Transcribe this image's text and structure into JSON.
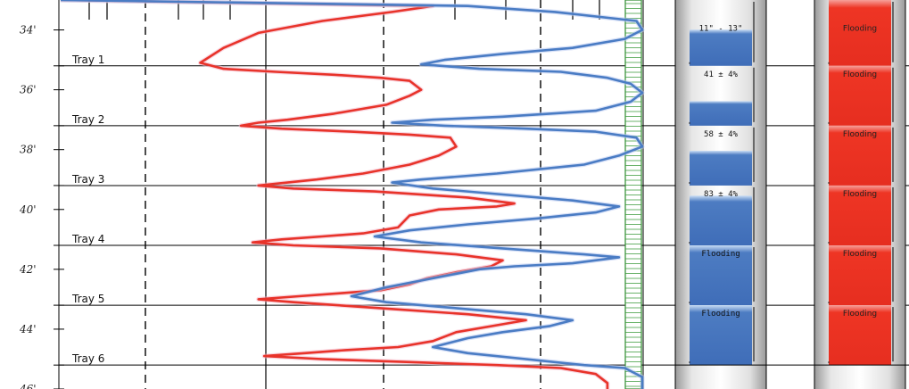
{
  "chart_data": {
    "type": "line",
    "depth_axis": {
      "labels": [
        "34'",
        "36'",
        "38'",
        "40'",
        "42'",
        "44'",
        "46'"
      ],
      "range": [
        33,
        46
      ],
      "label_depths": [
        34,
        36,
        38,
        40,
        42,
        44,
        46
      ]
    },
    "trays": [
      {
        "label": "Tray 1",
        "bottom_depth": 35.2
      },
      {
        "label": "Tray 2",
        "bottom_depth": 37.2
      },
      {
        "label": "Tray 3",
        "bottom_depth": 39.2
      },
      {
        "label": "Tray 4",
        "bottom_depth": 41.2
      },
      {
        "label": "Tray 5",
        "bottom_depth": 43.2
      },
      {
        "label": "Tray 6",
        "bottom_depth": 45.2
      }
    ],
    "x_range": [
      0,
      100
    ],
    "series": [
      {
        "color": "#e8332a",
        "points": [
          [
            0,
            33.0
          ],
          [
            64,
            33.2
          ],
          [
            57,
            33.4
          ],
          [
            45,
            33.7
          ],
          [
            34,
            34.1
          ],
          [
            28,
            34.6
          ],
          [
            24,
            35.1
          ],
          [
            28,
            35.3
          ],
          [
            37,
            35.4
          ],
          [
            47,
            35.5
          ],
          [
            55,
            35.6
          ],
          [
            60,
            35.7
          ],
          [
            62,
            36.0
          ],
          [
            60,
            36.2
          ],
          [
            56,
            36.5
          ],
          [
            47,
            36.8
          ],
          [
            39,
            37.0
          ],
          [
            34,
            37.1
          ],
          [
            31,
            37.2
          ],
          [
            38,
            37.3
          ],
          [
            50,
            37.4
          ],
          [
            60,
            37.5
          ],
          [
            67,
            37.6
          ],
          [
            68,
            37.9
          ],
          [
            65,
            38.2
          ],
          [
            60,
            38.5
          ],
          [
            52,
            38.8
          ],
          [
            44,
            39.0
          ],
          [
            39,
            39.1
          ],
          [
            34,
            39.2
          ],
          [
            40,
            39.3
          ],
          [
            54,
            39.4
          ],
          [
            70,
            39.6
          ],
          [
            78,
            39.8
          ],
          [
            75,
            39.9
          ],
          [
            65,
            40.0
          ],
          [
            60,
            40.2
          ],
          [
            58,
            40.6
          ],
          [
            52,
            40.8
          ],
          [
            45,
            40.9
          ],
          [
            38,
            41.0
          ],
          [
            33,
            41.1
          ],
          [
            40,
            41.2
          ],
          [
            55,
            41.3
          ],
          [
            68,
            41.5
          ],
          [
            76,
            41.7
          ],
          [
            74,
            41.9
          ],
          [
            68,
            42.1
          ],
          [
            63,
            42.3
          ],
          [
            60,
            42.5
          ],
          [
            55,
            42.7
          ],
          [
            48,
            42.8
          ],
          [
            41,
            42.9
          ],
          [
            34,
            43.0
          ],
          [
            40,
            43.1
          ],
          [
            55,
            43.3
          ],
          [
            70,
            43.5
          ],
          [
            80,
            43.7
          ],
          [
            74,
            43.9
          ],
          [
            68,
            44.1
          ],
          [
            64,
            44.4
          ],
          [
            58,
            44.6
          ],
          [
            49,
            44.7
          ],
          [
            42,
            44.8
          ],
          [
            35,
            44.9
          ],
          [
            45,
            45.0
          ],
          [
            60,
            45.1
          ],
          [
            75,
            45.2
          ],
          [
            86,
            45.3
          ],
          [
            92,
            45.5
          ],
          [
            94,
            45.8
          ],
          [
            94,
            46.0
          ]
        ]
      },
      {
        "color": "#4a7cc4",
        "points": [
          [
            0,
            33.0
          ],
          [
            70,
            33.2
          ],
          [
            85,
            33.4
          ],
          [
            99,
            33.7
          ],
          [
            100,
            34.0
          ],
          [
            97,
            34.3
          ],
          [
            88,
            34.6
          ],
          [
            76,
            34.8
          ],
          [
            66,
            35.0
          ],
          [
            62,
            35.15
          ],
          [
            72,
            35.3
          ],
          [
            86,
            35.4
          ],
          [
            94,
            35.6
          ],
          [
            98,
            35.8
          ],
          [
            100,
            36.1
          ],
          [
            98,
            36.4
          ],
          [
            92,
            36.7
          ],
          [
            76,
            36.9
          ],
          [
            64,
            37.0
          ],
          [
            57,
            37.1
          ],
          [
            66,
            37.2
          ],
          [
            80,
            37.3
          ],
          [
            92,
            37.4
          ],
          [
            99,
            37.6
          ],
          [
            100,
            37.9
          ],
          [
            96,
            38.2
          ],
          [
            90,
            38.5
          ],
          [
            75,
            38.8
          ],
          [
            62,
            39.0
          ],
          [
            57,
            39.1
          ],
          [
            64,
            39.3
          ],
          [
            76,
            39.5
          ],
          [
            88,
            39.7
          ],
          [
            96,
            39.9
          ],
          [
            92,
            40.1
          ],
          [
            82,
            40.3
          ],
          [
            70,
            40.5
          ],
          [
            60,
            40.7
          ],
          [
            54,
            40.9
          ],
          [
            62,
            41.1
          ],
          [
            76,
            41.3
          ],
          [
            90,
            41.5
          ],
          [
            96,
            41.6
          ],
          [
            88,
            41.8
          ],
          [
            78,
            41.9
          ],
          [
            72,
            42.0
          ],
          [
            64,
            42.3
          ],
          [
            56,
            42.6
          ],
          [
            50,
            42.9
          ],
          [
            56,
            43.1
          ],
          [
            68,
            43.3
          ],
          [
            80,
            43.5
          ],
          [
            88,
            43.7
          ],
          [
            84,
            43.9
          ],
          [
            76,
            44.1
          ],
          [
            70,
            44.3
          ],
          [
            64,
            44.6
          ],
          [
            70,
            44.8
          ],
          [
            80,
            45.0
          ],
          [
            90,
            45.2
          ],
          [
            97,
            45.3
          ],
          [
            100,
            45.6
          ],
          [
            100,
            46.0
          ]
        ]
      }
    ],
    "level_column": {
      "color": "#4d7cc2",
      "bars": [
        {
          "label": "11\" - 13\"",
          "fill": 0.55
        },
        {
          "label": "41 ± 4%",
          "fill": 0.41
        },
        {
          "label": "58 ± 4%",
          "fill": 0.58
        },
        {
          "label": "83 ± 4%",
          "fill": 0.83
        },
        {
          "label": "Flooding",
          "fill": 1.0
        },
        {
          "label": "Flooding",
          "fill": 1.0
        }
      ]
    },
    "status_column": {
      "color": "#ee3524",
      "bars": [
        {
          "label": "Flooding",
          "fill": 1.0
        },
        {
          "label": "Flooding",
          "fill": 1.0
        },
        {
          "label": "Flooding",
          "fill": 1.0
        },
        {
          "label": "Flooding",
          "fill": 1.0
        },
        {
          "label": "Flooding",
          "fill": 1.0
        },
        {
          "label": "Flooding",
          "fill": 1.0
        }
      ]
    },
    "grid": true,
    "legend": "none"
  }
}
